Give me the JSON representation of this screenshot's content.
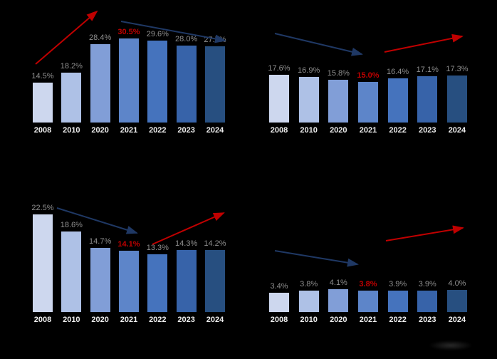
{
  "colors": {
    "background": "#000000",
    "value_label": "#8f8f8f",
    "highlight": "#c00000",
    "year_label": "#efefef",
    "arrow_red": "#c00000",
    "arrow_blue": "#1f3864",
    "bar_palette": [
      "#cdd7ee",
      "#aec1e6",
      "#819ed7",
      "#5d85c9",
      "#4573bd",
      "#3763a9",
      "#274f80"
    ]
  },
  "icons": {
    "up_arrow": "uptrend-arrow-icon",
    "down_arrow": "downtrend-arrow-icon"
  },
  "chart_data": [
    {
      "type": "bar",
      "position": "top-left",
      "categories": [
        "2008",
        "2010",
        "2020",
        "2021",
        "2022",
        "2023",
        "2024"
      ],
      "values": [
        14.5,
        18.2,
        28.4,
        30.5,
        29.6,
        28.0,
        27.7
      ],
      "labels": [
        "14.5%",
        "18.2%",
        "28.4%",
        "30.5%",
        "29.6%",
        "28.0%",
        "27.7%"
      ],
      "highlight_index": 3,
      "highlight_label": "30.5%",
      "ylim": [
        0,
        32
      ],
      "grid": false,
      "legend": false,
      "annotations": [
        {
          "icon": "uptrend-arrow-icon",
          "color": "red",
          "span": "2008-2021"
        },
        {
          "icon": "downtrend-arrow-icon",
          "color": "blue",
          "span": "2021-2024"
        }
      ]
    },
    {
      "type": "bar",
      "position": "top-right",
      "categories": [
        "2008",
        "2010",
        "2020",
        "2021",
        "2022",
        "2023",
        "2024"
      ],
      "values": [
        17.6,
        16.9,
        15.8,
        15.0,
        16.4,
        17.1,
        17.3
      ],
      "labels": [
        "17.6%",
        "16.9%",
        "15.8%",
        "15.0%",
        "16.4%",
        "17.1%",
        "17.3%"
      ],
      "highlight_index": 3,
      "highlight_label": "15.0%",
      "ylim": [
        0,
        20
      ],
      "grid": false,
      "legend": false,
      "annotations": [
        {
          "icon": "downtrend-arrow-icon",
          "color": "blue",
          "span": "2008-2021"
        },
        {
          "icon": "uptrend-arrow-icon",
          "color": "red",
          "span": "2021-2024"
        }
      ]
    },
    {
      "type": "bar",
      "position": "bottom-left",
      "categories": [
        "2008",
        "2010",
        "2020",
        "2021",
        "2022",
        "2023",
        "2024"
      ],
      "values": [
        22.5,
        18.6,
        14.7,
        14.1,
        13.3,
        14.3,
        14.2
      ],
      "labels": [
        "22.5%",
        "18.6%",
        "14.7%",
        "14.1%",
        "13.3%",
        "14.3%",
        "14.2%"
      ],
      "highlight_index": 3,
      "highlight_label": "14.1%",
      "ylim": [
        0,
        24
      ],
      "grid": false,
      "legend": false,
      "annotations": [
        {
          "icon": "downtrend-arrow-icon",
          "color": "blue",
          "span": "2008-2021"
        },
        {
          "icon": "uptrend-arrow-icon",
          "color": "red",
          "span": "2021-2024"
        }
      ]
    },
    {
      "type": "bar",
      "position": "bottom-right",
      "categories": [
        "2008",
        "2010",
        "2020",
        "2021",
        "2022",
        "2023",
        "2024"
      ],
      "values": [
        3.4,
        3.8,
        4.1,
        3.8,
        3.9,
        3.9,
        4.0
      ],
      "labels": [
        "3.4%",
        "3.8%",
        "4.1%",
        "3.8%",
        "3.9%",
        "3.9%",
        "4.0%"
      ],
      "highlight_index": 3,
      "highlight_label": "3.8%",
      "ylim": [
        0,
        5
      ],
      "grid": false,
      "legend": false,
      "annotations": [
        {
          "icon": "downtrend-arrow-icon",
          "color": "blue",
          "span": "2008-2021"
        },
        {
          "icon": "uptrend-arrow-icon",
          "color": "red",
          "span": "2021-2024"
        }
      ]
    }
  ]
}
